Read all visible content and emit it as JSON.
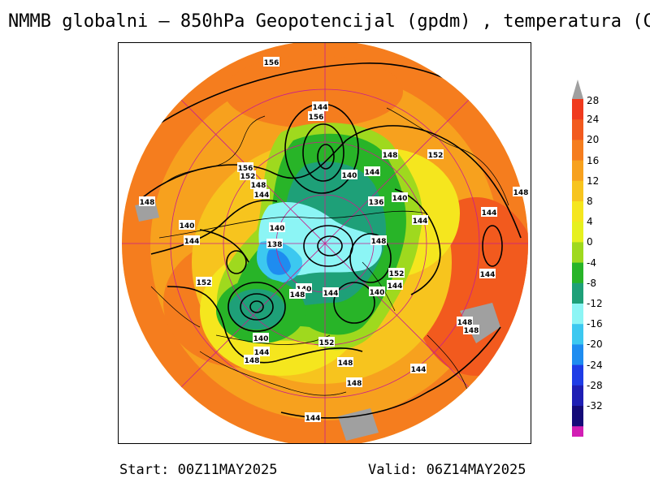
{
  "title": "NMMB globalni – 850hPa Geopotencijal (gpdm) , temperatura (C)",
  "footer": {
    "start": "Start: 00Z11MAY2025",
    "valid": "Valid: 06Z14MAY2025"
  },
  "colorbar": {
    "labels": [
      "28",
      "24",
      "20",
      "16",
      "12",
      "8",
      "4",
      "0",
      "-4",
      "-8",
      "-12",
      "-16",
      "-20",
      "-24",
      "-28",
      "-32"
    ],
    "colors": [
      "#f03a1e",
      "#f25a1e",
      "#f57d1e",
      "#f7a11e",
      "#f7c41e",
      "#f5e61e",
      "#e6f01e",
      "#9fd91e",
      "#28b428",
      "#1ea078",
      "#8cf5f5",
      "#3cc8f0",
      "#1e8cf0",
      "#1e3ce6",
      "#1e1eb4",
      "#140a78",
      "#d21eb4",
      "#b4147d"
    ],
    "top_color": "#a0a0a0"
  },
  "contour_labels": [
    "156",
    "144",
    "156",
    "148",
    "152",
    "156",
    "152",
    "148",
    "144",
    "140",
    "144",
    "136",
    "140",
    "148",
    "144",
    "140",
    "144",
    "140",
    "138",
    "148",
    "152",
    "144",
    "140",
    "144",
    "140",
    "148",
    "144",
    "152",
    "148",
    "144",
    "140",
    "148",
    "148",
    "144",
    "148",
    "148",
    "144",
    "148",
    "152",
    "144"
  ],
  "map": {
    "projection": "polar stereographic",
    "field": "850hPa geopotential (gpdm) and temperature (C)"
  }
}
